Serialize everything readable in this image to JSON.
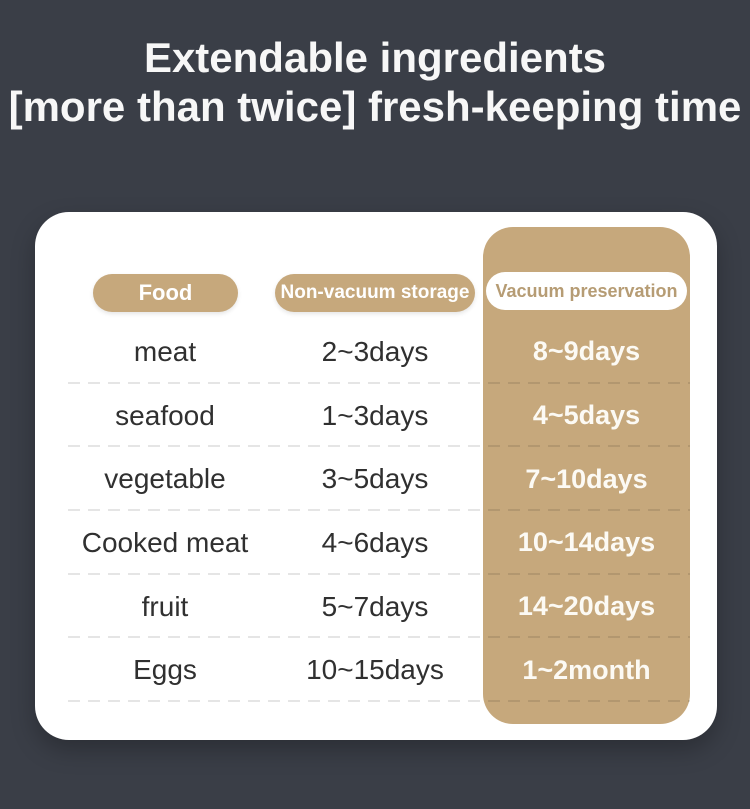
{
  "title": {
    "line1": "Extendable ingredients",
    "line2": "[more than twice] fresh-keeping time"
  },
  "chart_data": {
    "type": "table",
    "title": "Extendable ingredients [more than twice] fresh-keeping time",
    "columns": [
      "Food",
      "Non-vacuum storage",
      "Vacuum preservation"
    ],
    "rows": [
      [
        "meat",
        "2~3days",
        "8~9days"
      ],
      [
        "seafood",
        "1~3days",
        "4~5days"
      ],
      [
        "vegetable",
        "3~5days",
        "7~10days"
      ],
      [
        "Cooked meat",
        "4~6days",
        "10~14days"
      ],
      [
        "fruit",
        "5~7days",
        "14~20days"
      ],
      [
        "Eggs",
        "10~15days",
        "1~2month"
      ]
    ]
  },
  "colors": {
    "background": "#3a3e47",
    "card": "#ffffff",
    "accent_tan": "#c6a87c",
    "header_text": "#ffffff",
    "vacuum_header_text": "#b69c74",
    "body_text": "#303030",
    "vacuum_value_text": "#fcfaf4",
    "title_text": "#f7f7f7"
  }
}
